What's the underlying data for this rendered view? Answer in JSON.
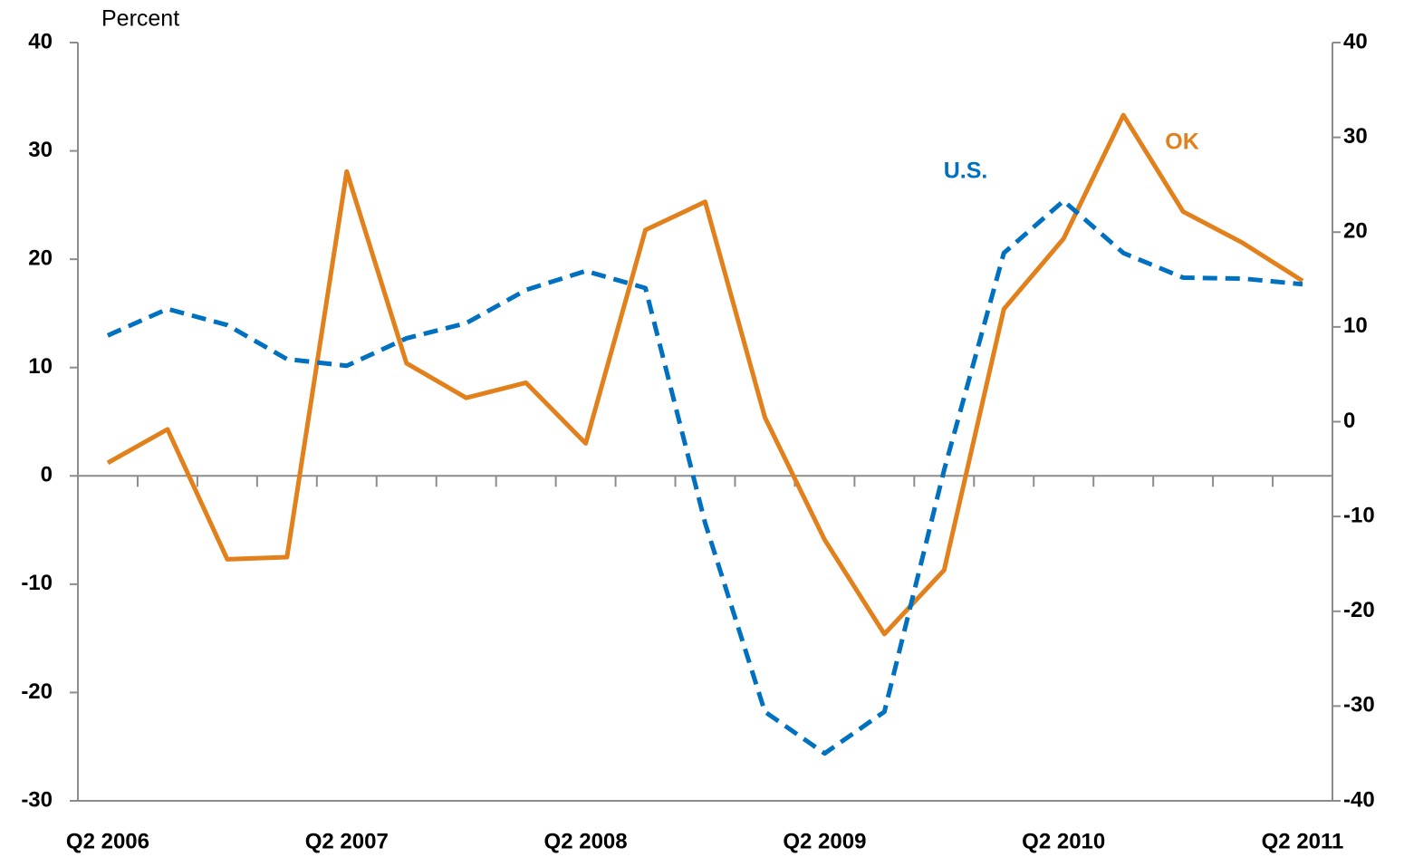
{
  "chart_data": {
    "type": "line",
    "y_label": "Percent",
    "categories": [
      "Q2 2006",
      null,
      null,
      null,
      "Q2 2007",
      null,
      null,
      null,
      "Q2 2008",
      null,
      null,
      null,
      "Q2 2009",
      null,
      null,
      null,
      "Q2 2010",
      null,
      null,
      null,
      "Q2 2011"
    ],
    "series": [
      {
        "name": "OK",
        "color": "#e2801c",
        "axis": "y",
        "values": [
          1.2,
          4.3,
          -7.7,
          -7.5,
          28.1,
          10.4,
          7.2,
          8.6,
          3.0,
          22.7,
          25.3,
          5.4,
          -5.9,
          -14.6,
          -8.7,
          15.4,
          21.9,
          33.3,
          24.4,
          21.5,
          18.0
        ]
      },
      {
        "name": "U.S.",
        "color": "#0070c0",
        "axis": "y2",
        "dashed": true,
        "values": [
          9.1,
          11.9,
          10.2,
          6.6,
          5.9,
          8.8,
          10.4,
          13.9,
          15.9,
          14.1,
          -10.7,
          -30.6,
          -35.0,
          -30.6,
          -5.1,
          17.8,
          23.3,
          17.8,
          15.2,
          15.1,
          14.5
        ]
      }
    ],
    "ylim": [
      -30,
      40
    ],
    "yticks": [
      -30,
      -20,
      -10,
      0,
      10,
      20,
      30,
      40
    ],
    "y2lim": [
      -40,
      40
    ],
    "y2ticks": [
      -40,
      -30,
      -20,
      -10,
      0,
      10,
      20,
      30,
      40
    ]
  }
}
